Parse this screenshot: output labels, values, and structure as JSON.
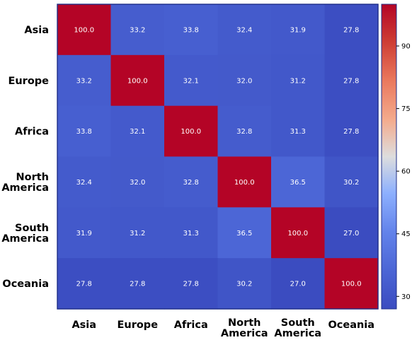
{
  "chart_data": {
    "type": "heatmap",
    "rows": [
      [
        "Asia"
      ],
      [
        "Europe"
      ],
      [
        "Africa"
      ],
      [
        "North",
        "America"
      ],
      [
        "South",
        "America"
      ],
      [
        "Oceania"
      ]
    ],
    "columns": [
      [
        "Asia"
      ],
      [
        "Europe"
      ],
      [
        "Africa"
      ],
      [
        "North",
        "America"
      ],
      [
        "South",
        "America"
      ],
      [
        "Oceania"
      ]
    ],
    "values": [
      [
        100.0,
        33.2,
        33.8,
        32.4,
        31.9,
        27.8
      ],
      [
        33.2,
        100.0,
        32.1,
        32.0,
        31.2,
        27.8
      ],
      [
        33.8,
        32.1,
        100.0,
        32.8,
        31.3,
        27.8
      ],
      [
        32.4,
        32.0,
        32.8,
        100.0,
        36.5,
        30.2
      ],
      [
        31.9,
        31.2,
        31.3,
        36.5,
        100.0,
        27.0
      ],
      [
        27.8,
        27.8,
        27.8,
        30.2,
        27.0,
        100.0
      ]
    ],
    "value_format": "0.0",
    "colormap": "coolwarm",
    "colorbar": {
      "min": 27.0,
      "max": 100.0,
      "ticks": [
        30,
        45,
        60,
        75,
        90
      ]
    },
    "title": "",
    "xlabel": "",
    "ylabel": ""
  }
}
